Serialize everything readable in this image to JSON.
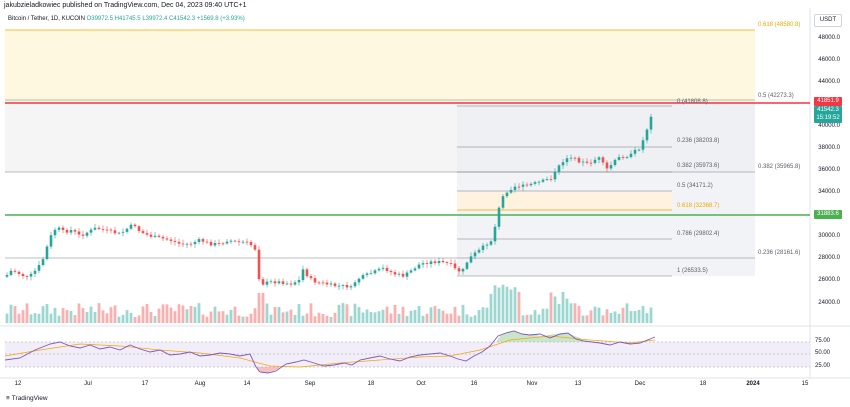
{
  "header": {
    "publish_text": "jakubzieladkowiec published on TradingView.com, Dec 04, 2023 09:40 UTC+1",
    "symbol": "Bitcoin / Tether, 1D, KUCOIN",
    "open": "O39972.5",
    "high": "H41745.5",
    "low": "L39972.4",
    "close": "C41542.3",
    "change": "+1569.8 (+3.93%)"
  },
  "currency_label": "USDT",
  "price_axis": [
    "48000.0",
    "46000.0",
    "44000.0",
    "40000.0",
    "38000.0",
    "36000.0",
    "34000.0",
    "32000.0",
    "30000.0",
    "28000.0",
    "26000.0",
    "24000.0"
  ],
  "rsi_axis": [
    "75.00",
    "50.00",
    "25.00"
  ],
  "date_axis": [
    {
      "label": "12",
      "bold": false
    },
    {
      "label": "Jul",
      "bold": false
    },
    {
      "label": "17",
      "bold": false
    },
    {
      "label": "Aug",
      "bold": false
    },
    {
      "label": "14",
      "bold": false
    },
    {
      "label": "Sep",
      "bold": false
    },
    {
      "label": "18",
      "bold": false
    },
    {
      "label": "Oct",
      "bold": false
    },
    {
      "label": "16",
      "bold": false
    },
    {
      "label": "Nov",
      "bold": false
    },
    {
      "label": "13",
      "bold": false
    },
    {
      "label": "Dec",
      "bold": false
    },
    {
      "label": "18",
      "bold": false
    },
    {
      "label": "2024",
      "bold": true
    },
    {
      "label": "15",
      "bold": false
    }
  ],
  "badges": {
    "red_level": "41851.9",
    "current_price": "41542.3",
    "countdown": "15:19:52",
    "green_level": "31883.6"
  },
  "fib_levels": {
    "outer_0618": "0.618 (48580.8)",
    "outer_05": "0.5 (42273.3)",
    "outer_0382": "0.382 (35965.8)",
    "outer_0236": "0.236 (28161.6)",
    "inner_0": "0 (41808.8)",
    "inner_0236": "0.236 (38203.8)",
    "inner_0382": "0.382 (35973.6)",
    "inner_05": "0.5 (34171.2)",
    "inner_0618": "0.618 (32368.7)",
    "inner_0786": "0.786 (29802.4)",
    "inner_1": "1 (26533.5)"
  },
  "brand": "TradingView",
  "colors": {
    "up": "#26a69a",
    "down": "#ef5350",
    "red_line": "#f23645",
    "green_line": "#4caf50",
    "fib_orange": "#f7a600",
    "rsi_line": "#7e57c2"
  }
}
